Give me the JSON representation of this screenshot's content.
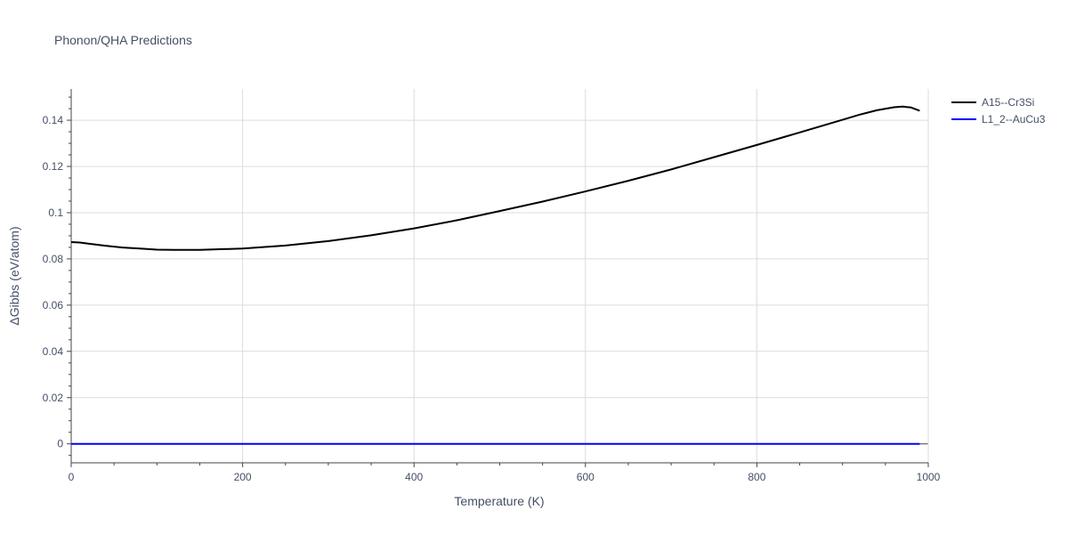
{
  "chart_data": {
    "type": "line",
    "title": "Phonon/QHA Predictions",
    "xlabel": "Temperature (K)",
    "ylabel": "ΔGibbs (eV/atom)",
    "xlim": [
      0,
      1000
    ],
    "ylim": [
      -0.0082,
      0.1535
    ],
    "xticks": [
      0,
      200,
      400,
      600,
      800,
      1000
    ],
    "xtick_labels": [
      "0",
      "200",
      "400",
      "600",
      "800",
      "1000"
    ],
    "yticks": [
      0,
      0.02,
      0.04,
      0.06,
      0.08,
      0.1,
      0.12,
      0.14
    ],
    "ytick_labels": [
      "0",
      "0.02",
      "0.04",
      "0.06",
      "0.08",
      "0.1",
      "0.12",
      "0.14"
    ],
    "grid": true,
    "legend_position": "top-right outside",
    "series": [
      {
        "name": "A15--Cr3Si",
        "color": "#000000",
        "x": [
          0,
          10,
          20,
          40,
          60,
          80,
          100,
          120,
          150,
          200,
          250,
          300,
          350,
          400,
          450,
          500,
          550,
          600,
          650,
          700,
          750,
          800,
          850,
          900,
          920,
          940,
          960,
          970,
          980,
          990
        ],
        "y": [
          0.0873,
          0.0871,
          0.0866,
          0.0857,
          0.0849,
          0.0845,
          0.084,
          0.0839,
          0.0839,
          0.0845,
          0.0858,
          0.0877,
          0.0902,
          0.0932,
          0.0967,
          0.1007,
          0.1048,
          0.1092,
          0.1138,
          0.1187,
          0.124,
          0.1293,
          0.1347,
          0.1402,
          0.1424,
          0.1443,
          0.1456,
          0.1459,
          0.1455,
          0.1441
        ]
      },
      {
        "name": "L1_2--AuCu3",
        "color": "#0000ff",
        "x": [
          0,
          990
        ],
        "y": [
          0,
          0
        ]
      }
    ]
  }
}
